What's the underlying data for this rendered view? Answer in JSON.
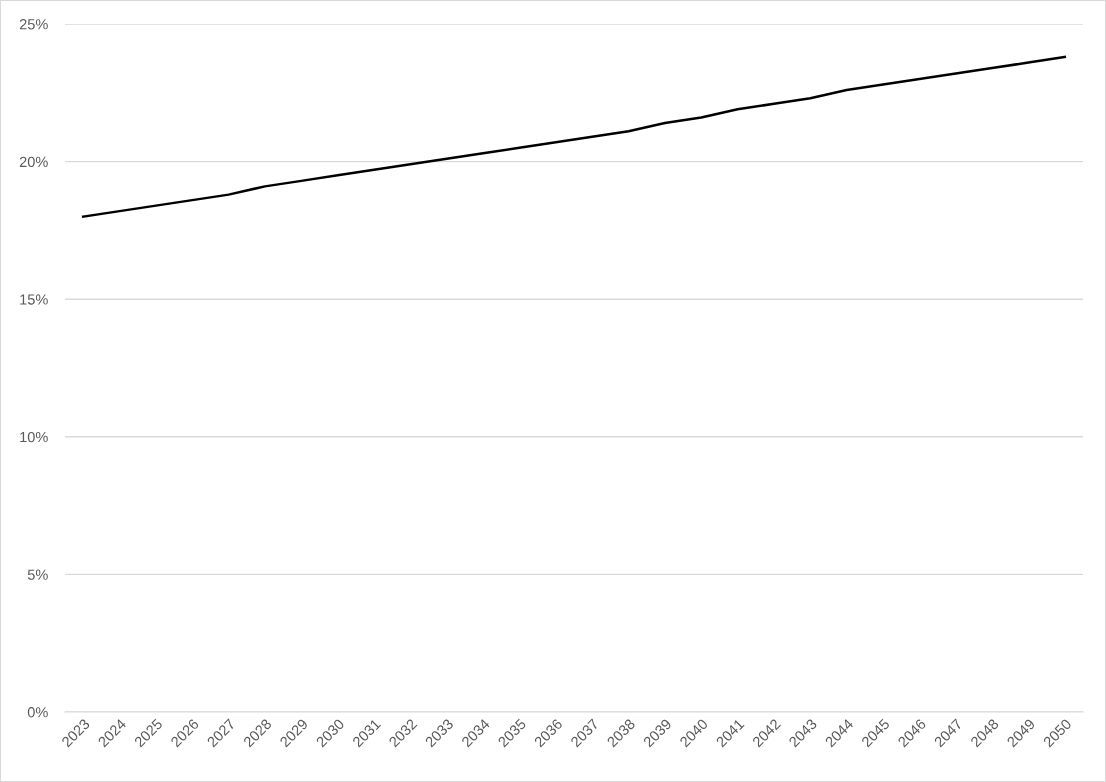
{
  "chart_data": {
    "type": "line",
    "categories": [
      "2023",
      "2024",
      "2025",
      "2026",
      "2027",
      "2028",
      "2029",
      "2030",
      "2031",
      "2032",
      "2033",
      "2034",
      "2035",
      "2036",
      "2037",
      "2038",
      "2039",
      "2040",
      "2041",
      "2042",
      "2043",
      "2044",
      "2045",
      "2046",
      "2047",
      "2048",
      "2049",
      "2050"
    ],
    "series": [
      {
        "color": "#000000",
        "values": [
          18.0,
          18.2,
          18.4,
          18.6,
          18.8,
          19.1,
          19.3,
          19.5,
          19.7,
          19.9,
          20.1,
          20.3,
          20.5,
          20.7,
          20.9,
          21.1,
          21.4,
          21.6,
          21.9,
          22.1,
          22.3,
          22.6,
          22.8,
          23.0,
          23.2,
          23.4,
          23.6,
          23.8
        ]
      }
    ],
    "ylim": [
      0,
      25
    ],
    "yticks": [
      {
        "value": 0,
        "label": "0%"
      },
      {
        "value": 5,
        "label": "5%"
      },
      {
        "value": 10,
        "label": "10%"
      },
      {
        "value": 15,
        "label": "15%"
      },
      {
        "value": 20,
        "label": "20%"
      },
      {
        "value": 25,
        "label": "25%"
      }
    ],
    "grid": "y",
    "marker": "none",
    "line_style": "solid"
  }
}
